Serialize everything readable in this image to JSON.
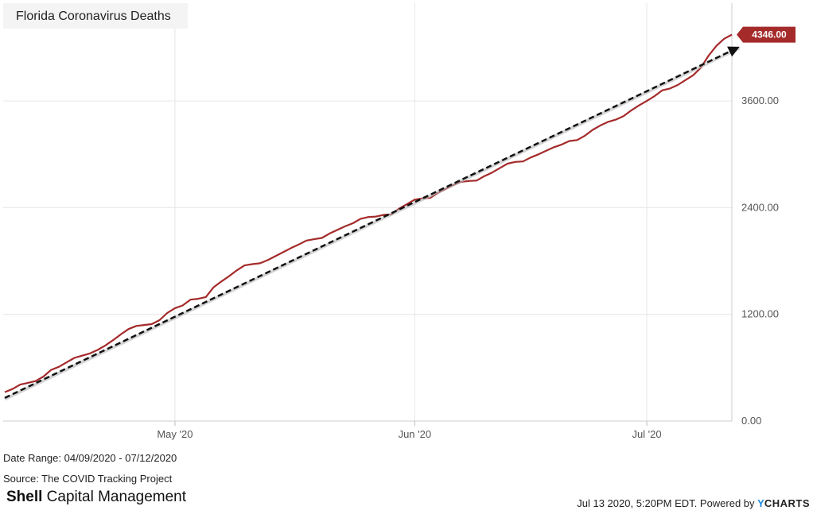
{
  "chart_data": {
    "type": "line",
    "title": "Florida Coronavirus Deaths",
    "xlabel": "",
    "ylabel": "",
    "x_range": [
      "2020-04-09",
      "2020-07-12"
    ],
    "ylim": [
      0,
      4700
    ],
    "y_ticks": [
      0,
      1200,
      2400,
      3600
    ],
    "y_tick_labels": [
      "0.00",
      "1200.00",
      "2400.00",
      "3600.00"
    ],
    "x_ticks": [
      {
        "date": "2020-05-01",
        "label": "May '20"
      },
      {
        "date": "2020-06-01",
        "label": "Jun '20"
      },
      {
        "date": "2020-07-01",
        "label": "Jul '20"
      }
    ],
    "grid": true,
    "legend": "none",
    "series": [
      {
        "color": "#a52a2a",
        "x": [
          "2020-04-09",
          "2020-04-10",
          "2020-04-11",
          "2020-04-12",
          "2020-04-13",
          "2020-04-14",
          "2020-04-15",
          "2020-04-16",
          "2020-04-17",
          "2020-04-18",
          "2020-04-19",
          "2020-04-20",
          "2020-04-21",
          "2020-04-22",
          "2020-04-23",
          "2020-04-24",
          "2020-04-25",
          "2020-04-26",
          "2020-04-27",
          "2020-04-28",
          "2020-04-29",
          "2020-04-30",
          "2020-05-01",
          "2020-05-02",
          "2020-05-03",
          "2020-05-04",
          "2020-05-05",
          "2020-05-06",
          "2020-05-07",
          "2020-05-08",
          "2020-05-09",
          "2020-05-10",
          "2020-05-11",
          "2020-05-12",
          "2020-05-13",
          "2020-05-14",
          "2020-05-15",
          "2020-05-16",
          "2020-05-17",
          "2020-05-18",
          "2020-05-19",
          "2020-05-20",
          "2020-05-21",
          "2020-05-22",
          "2020-05-23",
          "2020-05-24",
          "2020-05-25",
          "2020-05-26",
          "2020-05-27",
          "2020-05-28",
          "2020-05-29",
          "2020-05-30",
          "2020-05-31",
          "2020-06-01",
          "2020-06-02",
          "2020-06-03",
          "2020-06-04",
          "2020-06-05",
          "2020-06-06",
          "2020-06-07",
          "2020-06-08",
          "2020-06-09",
          "2020-06-10",
          "2020-06-11",
          "2020-06-12",
          "2020-06-13",
          "2020-06-14",
          "2020-06-15",
          "2020-06-16",
          "2020-06-17",
          "2020-06-18",
          "2020-06-19",
          "2020-06-20",
          "2020-06-21",
          "2020-06-22",
          "2020-06-23",
          "2020-06-24",
          "2020-06-25",
          "2020-06-26",
          "2020-06-27",
          "2020-06-28",
          "2020-06-29",
          "2020-06-30",
          "2020-07-01",
          "2020-07-02",
          "2020-07-03",
          "2020-07-04",
          "2020-07-05",
          "2020-07-06",
          "2020-07-07",
          "2020-07-08",
          "2020-07-09",
          "2020-07-10",
          "2020-07-11",
          "2020-07-12"
        ],
        "values": [
          325,
          360,
          410,
          430,
          450,
          500,
          575,
          610,
          660,
          710,
          735,
          760,
          800,
          850,
          910,
          975,
          1035,
          1070,
          1080,
          1090,
          1135,
          1215,
          1270,
          1300,
          1365,
          1375,
          1395,
          1505,
          1570,
          1630,
          1695,
          1750,
          1765,
          1775,
          1810,
          1855,
          1900,
          1945,
          1985,
          2030,
          2045,
          2060,
          2110,
          2150,
          2190,
          2225,
          2275,
          2295,
          2300,
          2320,
          2325,
          2390,
          2440,
          2490,
          2505,
          2510,
          2565,
          2610,
          2655,
          2690,
          2700,
          2705,
          2755,
          2795,
          2845,
          2895,
          2915,
          2920,
          2965,
          3000,
          3040,
          3080,
          3110,
          3150,
          3160,
          3210,
          3275,
          3325,
          3365,
          3390,
          3430,
          3495,
          3550,
          3600,
          3655,
          3720,
          3740,
          3780,
          3835,
          3890,
          3975,
          4110,
          4220,
          4300,
          4346
        ]
      }
    ],
    "trendline": {
      "style": "dashed-arrow",
      "color": "#111111",
      "start": [
        "2020-04-09",
        260
      ],
      "end": [
        "2020-07-13",
        4210
      ]
    },
    "last_value_label": "4346.00"
  },
  "footer": {
    "date_range": "Date Range: 04/09/2020 - 07/12/2020",
    "source": "Source: The COVID Tracking Project",
    "brand_bold": "Shell",
    "brand_rest": " Capital Management",
    "stamp_prefix": "Jul 13 2020, 5:20PM EDT. Powered by ",
    "ycharts_y": "Y",
    "ycharts_rest": "CHARTS"
  }
}
